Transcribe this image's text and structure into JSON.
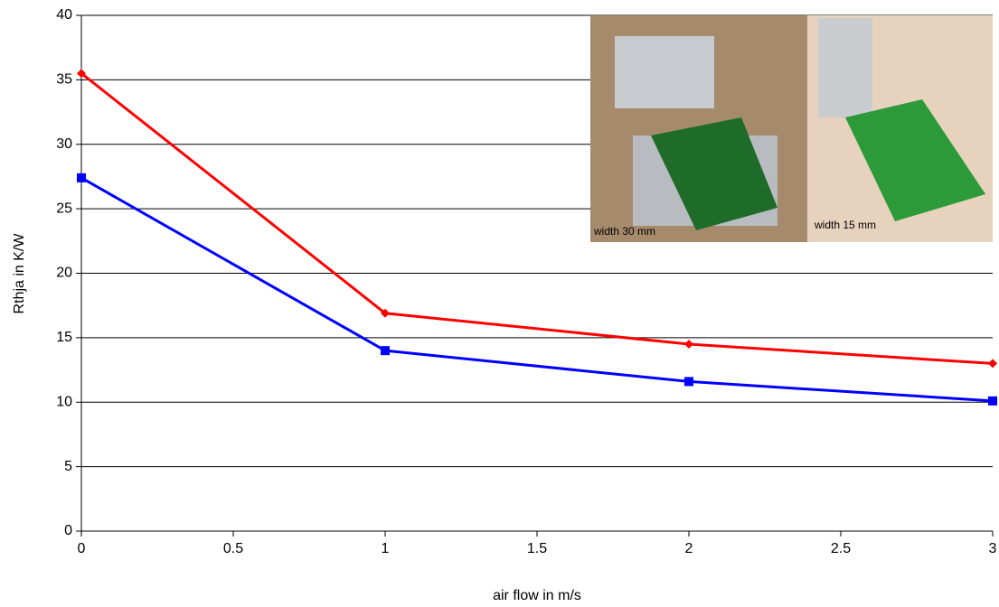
{
  "chart_data": {
    "type": "line",
    "x_label": "air flow in m/s",
    "y_label": "Rthja in K/W",
    "x": [
      0,
      1,
      2,
      3
    ],
    "series": [
      {
        "color": "#ff0000",
        "marker": "diamond",
        "values": [
          35.5,
          16.9,
          14.5,
          13.0
        ]
      },
      {
        "color": "#0000ff",
        "marker": "square",
        "values": [
          27.4,
          14.0,
          11.6,
          10.1
        ]
      }
    ],
    "xlim": [
      0,
      3
    ],
    "xticks": [
      0,
      0.5,
      1,
      1.5,
      2,
      2.5,
      3
    ],
    "ylim": [
      0,
      40
    ],
    "yticks": [
      0,
      5,
      10,
      15,
      20,
      25,
      30,
      35,
      40
    ],
    "grid": true,
    "annotations": [
      "width 30 mm",
      "width 15 mm"
    ]
  }
}
